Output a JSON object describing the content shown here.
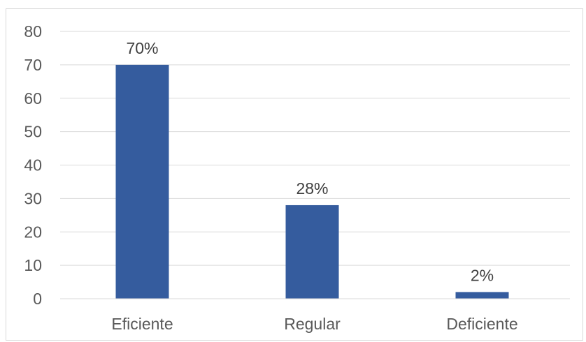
{
  "chart_data": {
    "type": "bar",
    "categories": [
      "Eficiente",
      "Regular",
      "Deficiente"
    ],
    "values": [
      70,
      28,
      2
    ],
    "data_labels": [
      "70%",
      "28%",
      "2%"
    ],
    "ylim": [
      0,
      80
    ],
    "y_ticks": [
      0,
      10,
      20,
      30,
      40,
      50,
      60,
      70,
      80
    ],
    "grid": true,
    "legend": "none",
    "bar_color": "#355C9E",
    "grid_color": "#d9d9d9",
    "text_color": "#595959"
  }
}
